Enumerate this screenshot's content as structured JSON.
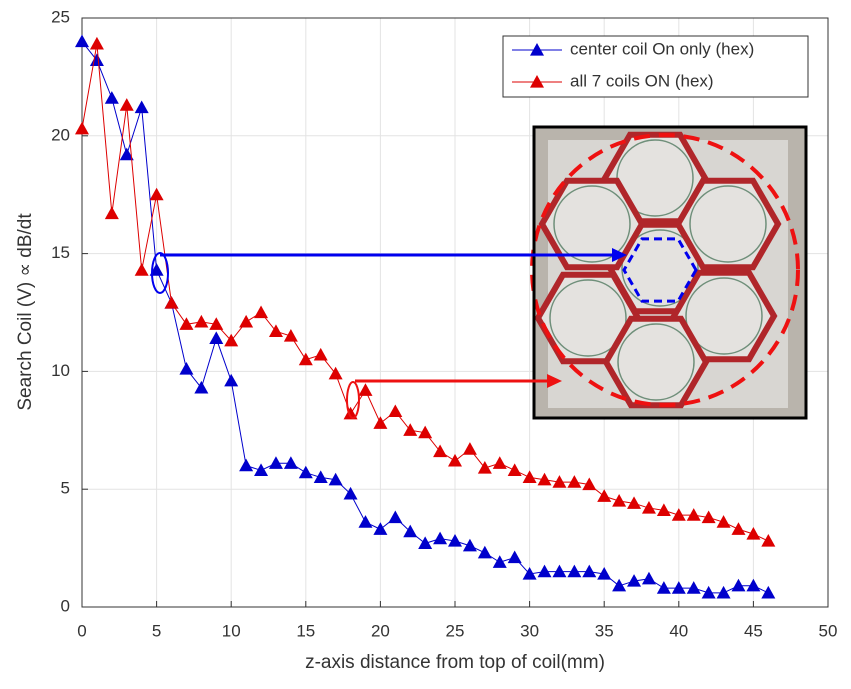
{
  "chart_data": {
    "type": "line",
    "xlabel": "z-axis distance from top of coil(mm)",
    "ylabel": "Search Coil (V) ∝ dB/dt",
    "x": [
      0,
      1,
      2,
      3,
      4,
      5,
      6,
      7,
      8,
      9,
      10,
      11,
      12,
      13,
      14,
      15,
      16,
      17,
      18,
      19,
      20,
      21,
      22,
      23,
      24,
      25,
      26,
      27,
      28,
      29,
      30,
      31,
      32,
      33,
      34,
      35,
      36,
      37,
      38,
      39,
      40,
      41,
      42,
      43,
      44,
      45,
      46
    ],
    "series": [
      {
        "name": "center coil On only (hex)",
        "color": "#0000cc",
        "values": [
          24.0,
          23.2,
          21.6,
          19.2,
          21.2,
          14.3,
          12.9,
          10.1,
          9.3,
          11.4,
          9.6,
          6.0,
          5.8,
          6.1,
          6.1,
          5.7,
          5.5,
          5.4,
          4.8,
          3.6,
          3.3,
          3.8,
          3.2,
          2.7,
          2.9,
          2.8,
          2.6,
          2.3,
          1.9,
          2.1,
          1.4,
          1.5,
          1.5,
          1.5,
          1.5,
          1.4,
          0.9,
          1.1,
          1.2,
          0.8,
          0.8,
          0.8,
          0.6,
          0.6,
          0.9,
          0.9,
          0.6
        ]
      },
      {
        "name": "all 7 coils ON (hex)",
        "color": "#dd0000",
        "values": [
          20.3,
          23.9,
          16.7,
          21.3,
          14.3,
          17.5,
          12.9,
          12.0,
          12.1,
          12.0,
          11.3,
          12.1,
          12.5,
          11.7,
          11.5,
          10.5,
          10.7,
          9.9,
          8.2,
          9.2,
          7.8,
          8.3,
          7.5,
          7.4,
          6.6,
          6.2,
          6.7,
          5.9,
          6.1,
          5.8,
          5.5,
          5.4,
          5.3,
          5.3,
          5.2,
          4.7,
          4.5,
          4.4,
          4.2,
          4.1,
          3.9,
          3.9,
          3.8,
          3.6,
          3.3,
          3.1,
          2.8
        ]
      }
    ],
    "xlim": [
      0,
      50
    ],
    "xticks": [
      0,
      5,
      10,
      15,
      20,
      25,
      30,
      35,
      40,
      45,
      50
    ],
    "ylim": [
      0,
      25
    ],
    "yticks": [
      0,
      5,
      10,
      15,
      20,
      25
    ],
    "grid": true,
    "legend": "upper right"
  }
}
